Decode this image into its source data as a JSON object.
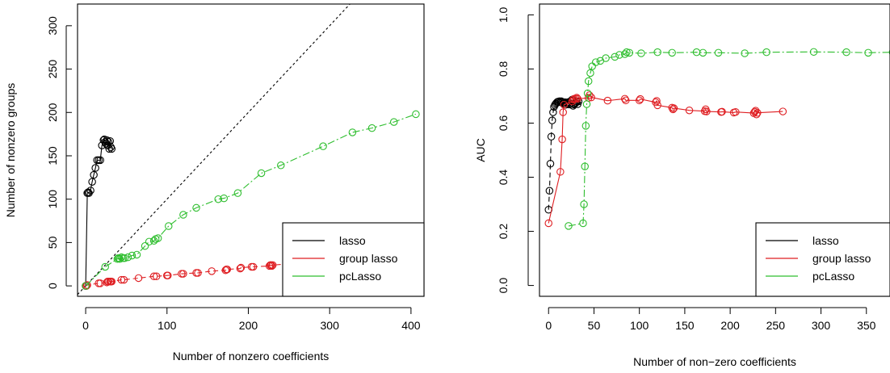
{
  "colors": {
    "lasso": "#000000",
    "group lasso": "#DF1E22",
    "pcLasso": "#2FBE2F",
    "reference": "#000000",
    "frame": "#000000"
  },
  "chart_data": [
    {
      "type": "scatter",
      "xlabel": "Number of nonzero coefficients",
      "ylabel": "Number of nonzero groups",
      "xlim": [
        -10,
        416
      ],
      "ylim": [
        -12,
        325
      ],
      "x_ticks": [
        0,
        100,
        200,
        300,
        400
      ],
      "y_ticks": [
        0,
        50,
        100,
        150,
        200,
        250,
        300
      ],
      "grid": false,
      "legend_position": "bottom-right",
      "reference_line": {
        "slope": 1,
        "intercept": 0,
        "style": "dotted"
      },
      "series": [
        {
          "name": "lasso",
          "line_style": "solid",
          "x": [
            0,
            2,
            3,
            4,
            6,
            8,
            10,
            12,
            14,
            16,
            18,
            20,
            22,
            23,
            24,
            25,
            26,
            27,
            28,
            29,
            30,
            31,
            32
          ],
          "y": [
            0,
            107,
            108,
            107,
            110,
            120,
            128,
            136,
            145,
            145,
            145,
            162,
            168,
            169,
            166,
            164,
            168,
            162,
            166,
            158,
            167,
            160,
            158
          ]
        },
        {
          "name": "group lasso",
          "line_style": "dashed",
          "x": [
            0,
            1,
            2,
            16,
            18,
            26,
            27,
            28,
            30,
            31,
            32,
            44,
            47,
            65,
            84,
            87,
            100,
            101,
            118,
            120,
            136,
            138,
            155,
            172,
            173,
            174,
            190,
            191,
            204,
            206,
            226,
            227,
            228,
            229,
            230,
            258
          ],
          "y": [
            0,
            0,
            1,
            3,
            3,
            4,
            5,
            5,
            5,
            5,
            5,
            7,
            7,
            9,
            11,
            11,
            12,
            12,
            14,
            14,
            15,
            15,
            17,
            18,
            19,
            19,
            20,
            21,
            22,
            22,
            23,
            24,
            24,
            23,
            24,
            26
          ]
        },
        {
          "name": "pcLasso",
          "line_style": "dashdot",
          "x": [
            0,
            24,
            39,
            40,
            41,
            42,
            44,
            46,
            48,
            52,
            57,
            63,
            73,
            78,
            84,
            86,
            89,
            102,
            120,
            136,
            163,
            170,
            187,
            216,
            240,
            292,
            328,
            352,
            379,
            406
          ],
          "y": [
            0,
            22,
            31,
            32,
            32,
            31,
            33,
            32,
            32,
            33,
            35,
            36,
            46,
            51,
            52,
            54,
            55,
            69,
            82,
            90,
            100,
            101,
            107,
            130,
            139,
            161,
            177,
            182,
            189,
            198
          ]
        }
      ]
    },
    {
      "type": "scatter",
      "xlabel": "Number of non−zero coefficients",
      "ylabel": "AUC",
      "xlim": [
        -10,
        376
      ],
      "ylim": [
        -0.04,
        1.04
      ],
      "x_ticks": [
        0,
        50,
        100,
        150,
        200,
        250,
        300,
        350
      ],
      "y_ticks": [
        "0.0",
        "0.2",
        "0.4",
        "0.6",
        "0.8",
        "1.0"
      ],
      "grid": false,
      "legend_position": "bottom-right",
      "series": [
        {
          "name": "lasso",
          "line_style": "dashed",
          "x": [
            0,
            1,
            2,
            3,
            4,
            5,
            6,
            7,
            8,
            9,
            10,
            11,
            12,
            13,
            14,
            15,
            16,
            17,
            18,
            19,
            20,
            21,
            22,
            23,
            24,
            25,
            26,
            27,
            28,
            29,
            30,
            31,
            32,
            33
          ],
          "y": [
            0.28,
            0.35,
            0.45,
            0.55,
            0.61,
            0.64,
            0.66,
            0.667,
            0.672,
            0.676,
            0.679,
            0.678,
            0.681,
            0.677,
            0.681,
            0.678,
            0.673,
            0.675,
            0.677,
            0.668,
            0.676,
            0.672,
            0.678,
            0.669,
            0.672,
            0.683,
            0.687,
            0.664,
            0.669,
            0.672,
            0.675,
            0.679,
            0.67,
            0.68
          ]
        },
        {
          "name": "group lasso",
          "line_style": "solid",
          "x": [
            0,
            13,
            15,
            16,
            17,
            26,
            27,
            28,
            30,
            31,
            32,
            44,
            45,
            47,
            65,
            84,
            85,
            100,
            101,
            118,
            119,
            120,
            136,
            137,
            138,
            155,
            172,
            173,
            174,
            190,
            191,
            204,
            206,
            226,
            227,
            228,
            229,
            230,
            258
          ],
          "y": [
            0.23,
            0.42,
            0.54,
            0.64,
            0.668,
            0.68,
            0.687,
            0.69,
            0.69,
            0.694,
            0.69,
            0.693,
            0.703,
            0.695,
            0.683,
            0.69,
            0.684,
            0.684,
            0.689,
            0.677,
            0.682,
            0.666,
            0.657,
            0.651,
            0.655,
            0.647,
            0.644,
            0.651,
            0.643,
            0.641,
            0.642,
            0.639,
            0.641,
            0.637,
            0.642,
            0.646,
            0.632,
            0.638,
            0.643
          ]
        },
        {
          "name": "pcLasso",
          "line_style": "dashdot",
          "x": [
            22,
            38,
            39,
            40,
            41,
            42,
            43,
            44,
            46,
            48,
            52,
            57,
            63,
            73,
            78,
            84,
            86,
            89,
            102,
            120,
            136,
            163,
            170,
            187,
            216,
            240,
            292,
            328,
            352,
            379
          ],
          "y": [
            0.22,
            0.23,
            0.3,
            0.44,
            0.59,
            0.67,
            0.71,
            0.755,
            0.785,
            0.81,
            0.825,
            0.83,
            0.84,
            0.845,
            0.852,
            0.855,
            0.862,
            0.86,
            0.858,
            0.862,
            0.86,
            0.862,
            0.86,
            0.86,
            0.858,
            0.862,
            0.863,
            0.862,
            0.86,
            0.862
          ]
        }
      ]
    }
  ]
}
